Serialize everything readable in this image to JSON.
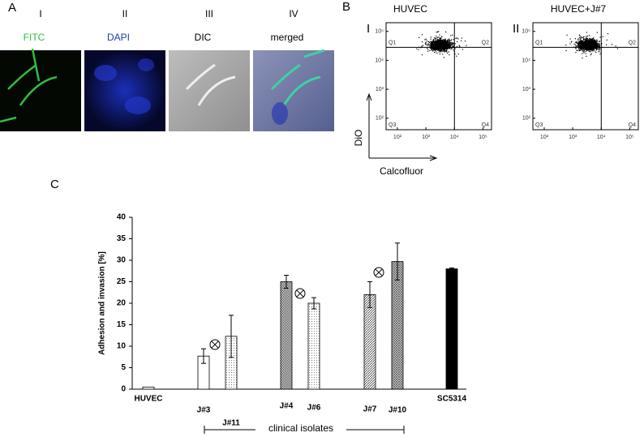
{
  "panel_a": {
    "label": "A",
    "columns": [
      {
        "numeral": "I",
        "stain": "FITC"
      },
      {
        "numeral": "II",
        "stain": "DAPI"
      },
      {
        "numeral": "III",
        "stain": "DIC"
      },
      {
        "numeral": "IV",
        "stain": "merged"
      }
    ]
  },
  "panel_b": {
    "label": "B",
    "plots": [
      {
        "numeral": "I",
        "title": "HUVEC"
      },
      {
        "numeral": "II",
        "title": "HUVEC+J#7"
      }
    ],
    "quadrants": [
      "Q1",
      "Q2",
      "Q3",
      "Q4"
    ],
    "y_label": "DiO",
    "x_label": "Calcofluor",
    "ticks": [
      {
        "value": 100,
        "label": "10²"
      },
      {
        "value": 1000,
        "label": "10³"
      },
      {
        "value": 10000,
        "label": "10⁴"
      },
      {
        "value": 100000,
        "label": "10⁵"
      }
    ],
    "log_scale": true
  },
  "chart_data": {
    "type": "bar",
    "panel_label": "C",
    "y_label": "Adhesion and invasion [%]",
    "categories": [
      "HUVEC",
      "J#3",
      "J#11",
      "J#4",
      "J#6",
      "J#7",
      "J#10",
      "SC5314"
    ],
    "values": [
      0.5,
      7.7,
      12.3,
      25,
      20,
      22,
      29.7,
      28
    ],
    "errors": [
      0,
      1.7,
      4.9,
      1.5,
      1.3,
      3,
      4.3,
      0.2
    ],
    "patterns": [
      "none",
      "none",
      "dots",
      "grid",
      "dots",
      "hatch",
      "crosshatch",
      "solid"
    ],
    "ylim": [
      0,
      40
    ],
    "yticks": [
      0,
      5,
      10,
      15,
      20,
      25,
      30,
      35,
      40
    ],
    "annotation": "clinical isolates"
  }
}
